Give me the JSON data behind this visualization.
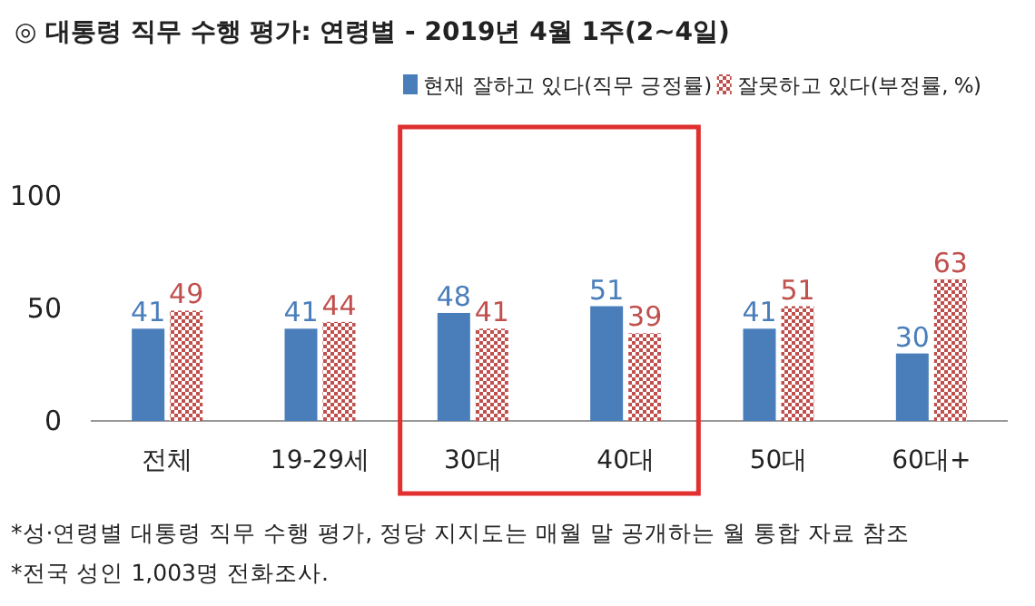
{
  "chart_data": {
    "type": "bar",
    "title": "◎  대통령 직무 수행 평가: 연령별 - 2019년 4월 1주(2~4일)",
    "categories": [
      "전체",
      "19-29세",
      "30대",
      "40대",
      "50대",
      "60대+"
    ],
    "series": [
      {
        "name": "현재 잘하고 있다(직무 긍정률)",
        "color": "#4a7ebb",
        "values": [
          41,
          41,
          48,
          51,
          41,
          30
        ]
      },
      {
        "name": "잘못하고 있다(부정률, %)",
        "color": "#c0504d",
        "values": [
          49,
          44,
          41,
          39,
          51,
          63
        ]
      }
    ],
    "ylim": [
      0,
      100
    ],
    "yticks": [
      0,
      50,
      100
    ],
    "data_labels": true,
    "legend": "top",
    "grid": false,
    "annotations": [
      "*성·연령별 대통령 직무 수행 평가, 정당 지지도는 매월 말 공개하는 월 통합 자료 참조",
      "*전국 성인 1,003명 전화조사."
    ]
  }
}
